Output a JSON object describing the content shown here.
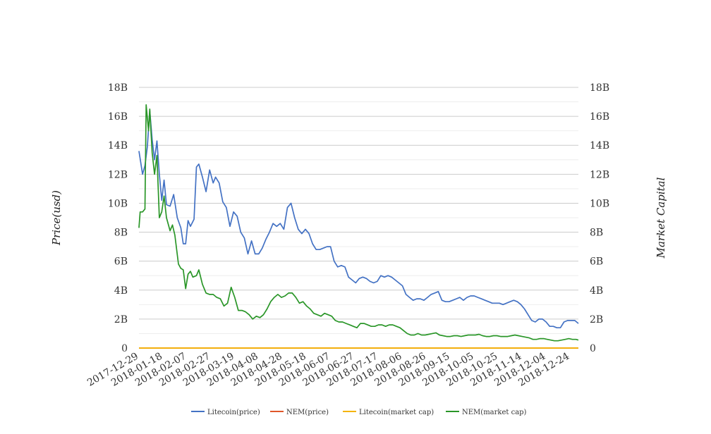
{
  "chart_data": {
    "type": "line",
    "ylabel_left": "Price(usd)",
    "ylabel_right": "Market Capital",
    "ylim": [
      0,
      18000000000
    ],
    "y_ticks": [
      {
        "value": 0,
        "label": "0"
      },
      {
        "value": 2000000000,
        "label": "2B"
      },
      {
        "value": 4000000000,
        "label": "4B"
      },
      {
        "value": 6000000000,
        "label": "6B"
      },
      {
        "value": 8000000000,
        "label": "8B"
      },
      {
        "value": 10000000000,
        "label": "10B"
      },
      {
        "value": 12000000000,
        "label": "12B"
      },
      {
        "value": 14000000000,
        "label": "14B"
      },
      {
        "value": 16000000000,
        "label": "16B"
      },
      {
        "value": 18000000000,
        "label": "18B"
      }
    ],
    "x_range": [
      "2017-12-29",
      "2018-12-31"
    ],
    "x_tick_labels": [
      "2017-12-29",
      "2018-01-18",
      "2018-02-07",
      "2018-02-27",
      "2018-03-19",
      "2018-04-08",
      "2018-04-28",
      "2018-05-18",
      "2018-06-07",
      "2018-06-27",
      "2018-07-17",
      "2018-08-06",
      "2018-08-26",
      "2018-09-15",
      "2018-10-05",
      "2018-10-25",
      "2018-11-14",
      "2018-12-04",
      "2018-12-24"
    ],
    "grid": true,
    "legend_position": "bottom",
    "series": [
      {
        "name": "Litecoin(price)",
        "color": "#4472c4",
        "axis": "left",
        "points": [
          [
            "2017-12-29",
            13.6
          ],
          [
            "2018-01-01",
            12.0
          ],
          [
            "2018-01-03",
            12.6
          ],
          [
            "2018-01-05",
            13.9
          ],
          [
            "2018-01-07",
            16.4
          ],
          [
            "2018-01-09",
            14.4
          ],
          [
            "2018-01-11",
            13.0
          ],
          [
            "2018-01-13",
            14.3
          ],
          [
            "2018-01-15",
            12.0
          ],
          [
            "2018-01-17",
            10.2
          ],
          [
            "2018-01-19",
            11.6
          ],
          [
            "2018-01-21",
            9.9
          ],
          [
            "2018-01-24",
            9.8
          ],
          [
            "2018-01-27",
            10.6
          ],
          [
            "2018-01-30",
            9.0
          ],
          [
            "2018-02-02",
            8.3
          ],
          [
            "2018-02-04",
            7.2
          ],
          [
            "2018-02-06",
            7.2
          ],
          [
            "2018-02-08",
            8.8
          ],
          [
            "2018-02-10",
            8.4
          ],
          [
            "2018-02-13",
            8.9
          ],
          [
            "2018-02-15",
            12.5
          ],
          [
            "2018-02-17",
            12.7
          ],
          [
            "2018-02-20",
            11.8
          ],
          [
            "2018-02-23",
            10.8
          ],
          [
            "2018-02-26",
            12.3
          ],
          [
            "2018-03-01",
            11.4
          ],
          [
            "2018-03-03",
            11.8
          ],
          [
            "2018-03-06",
            11.4
          ],
          [
            "2018-03-09",
            10.1
          ],
          [
            "2018-03-12",
            9.7
          ],
          [
            "2018-03-15",
            8.4
          ],
          [
            "2018-03-18",
            9.4
          ],
          [
            "2018-03-21",
            9.1
          ],
          [
            "2018-03-24",
            8.0
          ],
          [
            "2018-03-27",
            7.6
          ],
          [
            "2018-03-30",
            6.5
          ],
          [
            "2018-04-02",
            7.4
          ],
          [
            "2018-04-05",
            6.5
          ],
          [
            "2018-04-08",
            6.5
          ],
          [
            "2018-04-11",
            6.9
          ],
          [
            "2018-04-14",
            7.5
          ],
          [
            "2018-04-17",
            8.0
          ],
          [
            "2018-04-20",
            8.6
          ],
          [
            "2018-04-23",
            8.4
          ],
          [
            "2018-04-26",
            8.6
          ],
          [
            "2018-04-29",
            8.2
          ],
          [
            "2018-05-02",
            9.7
          ],
          [
            "2018-05-05",
            10.0
          ],
          [
            "2018-05-08",
            9.0
          ],
          [
            "2018-05-11",
            8.2
          ],
          [
            "2018-05-14",
            7.9
          ],
          [
            "2018-05-17",
            8.2
          ],
          [
            "2018-05-20",
            7.9
          ],
          [
            "2018-05-23",
            7.2
          ],
          [
            "2018-05-26",
            6.8
          ],
          [
            "2018-05-29",
            6.8
          ],
          [
            "2018-06-01",
            6.9
          ],
          [
            "2018-06-04",
            7.0
          ],
          [
            "2018-06-07",
            7.0
          ],
          [
            "2018-06-10",
            6.0
          ],
          [
            "2018-06-13",
            5.6
          ],
          [
            "2018-06-16",
            5.7
          ],
          [
            "2018-06-19",
            5.6
          ],
          [
            "2018-06-22",
            4.9
          ],
          [
            "2018-06-25",
            4.7
          ],
          [
            "2018-06-28",
            4.5
          ],
          [
            "2018-07-01",
            4.8
          ],
          [
            "2018-07-04",
            4.9
          ],
          [
            "2018-07-07",
            4.8
          ],
          [
            "2018-07-10",
            4.6
          ],
          [
            "2018-07-13",
            4.5
          ],
          [
            "2018-07-16",
            4.6
          ],
          [
            "2018-07-19",
            5.0
          ],
          [
            "2018-07-22",
            4.9
          ],
          [
            "2018-07-25",
            5.0
          ],
          [
            "2018-07-28",
            4.9
          ],
          [
            "2018-07-31",
            4.7
          ],
          [
            "2018-08-03",
            4.5
          ],
          [
            "2018-08-06",
            4.3
          ],
          [
            "2018-08-09",
            3.7
          ],
          [
            "2018-08-12",
            3.5
          ],
          [
            "2018-08-15",
            3.3
          ],
          [
            "2018-08-18",
            3.4
          ],
          [
            "2018-08-21",
            3.4
          ],
          [
            "2018-08-24",
            3.3
          ],
          [
            "2018-08-27",
            3.5
          ],
          [
            "2018-08-30",
            3.7
          ],
          [
            "2018-09-02",
            3.8
          ],
          [
            "2018-09-05",
            3.9
          ],
          [
            "2018-09-08",
            3.3
          ],
          [
            "2018-09-11",
            3.2
          ],
          [
            "2018-09-14",
            3.2
          ],
          [
            "2018-09-17",
            3.3
          ],
          [
            "2018-09-20",
            3.4
          ],
          [
            "2018-09-23",
            3.5
          ],
          [
            "2018-09-26",
            3.3
          ],
          [
            "2018-09-29",
            3.5
          ],
          [
            "2018-10-02",
            3.6
          ],
          [
            "2018-10-05",
            3.6
          ],
          [
            "2018-10-08",
            3.5
          ],
          [
            "2018-10-11",
            3.4
          ],
          [
            "2018-10-14",
            3.3
          ],
          [
            "2018-10-17",
            3.2
          ],
          [
            "2018-10-20",
            3.1
          ],
          [
            "2018-10-23",
            3.1
          ],
          [
            "2018-10-26",
            3.1
          ],
          [
            "2018-10-29",
            3.0
          ],
          [
            "2018-11-01",
            3.1
          ],
          [
            "2018-11-04",
            3.2
          ],
          [
            "2018-11-07",
            3.3
          ],
          [
            "2018-11-10",
            3.2
          ],
          [
            "2018-11-13",
            3.0
          ],
          [
            "2018-11-16",
            2.7
          ],
          [
            "2018-11-19",
            2.3
          ],
          [
            "2018-11-22",
            1.9
          ],
          [
            "2018-11-25",
            1.8
          ],
          [
            "2018-11-28",
            2.0
          ],
          [
            "2018-12-01",
            2.0
          ],
          [
            "2018-12-04",
            1.8
          ],
          [
            "2018-12-07",
            1.5
          ],
          [
            "2018-12-10",
            1.5
          ],
          [
            "2018-12-13",
            1.4
          ],
          [
            "2018-12-16",
            1.4
          ],
          [
            "2018-12-19",
            1.8
          ],
          [
            "2018-12-22",
            1.9
          ],
          [
            "2018-12-25",
            1.9
          ],
          [
            "2018-12-28",
            1.9
          ],
          [
            "2018-12-31",
            1.7
          ]
        ]
      },
      {
        "name": "NEM(price)",
        "color": "#e0572a",
        "axis": "left",
        "points": [
          [
            "2017-12-29",
            0
          ],
          [
            "2018-12-31",
            0
          ]
        ]
      },
      {
        "name": "Litecoin(market cap)",
        "color": "#f5b400",
        "axis": "right",
        "points": [
          [
            "2017-12-29",
            0
          ],
          [
            "2018-12-31",
            0
          ]
        ]
      },
      {
        "name": "NEM(market cap)",
        "color": "#2a9628",
        "axis": "right",
        "points": [
          [
            "2017-12-29",
            8.3
          ],
          [
            "2017-12-30",
            9.4
          ],
          [
            "2018-01-01",
            9.4
          ],
          [
            "2018-01-03",
            9.6
          ],
          [
            "2018-01-04",
            16.8
          ],
          [
            "2018-01-06",
            15.0
          ],
          [
            "2018-01-07",
            16.5
          ],
          [
            "2018-01-09",
            13.5
          ],
          [
            "2018-01-11",
            12.0
          ],
          [
            "2018-01-13",
            13.3
          ],
          [
            "2018-01-15",
            9.0
          ],
          [
            "2018-01-17",
            9.4
          ],
          [
            "2018-01-19",
            10.5
          ],
          [
            "2018-01-21",
            9.0
          ],
          [
            "2018-01-24",
            8.1
          ],
          [
            "2018-01-26",
            8.5
          ],
          [
            "2018-01-28",
            7.8
          ],
          [
            "2018-01-31",
            5.8
          ],
          [
            "2018-02-02",
            5.5
          ],
          [
            "2018-02-04",
            5.4
          ],
          [
            "2018-02-06",
            4.1
          ],
          [
            "2018-02-08",
            5.1
          ],
          [
            "2018-02-10",
            5.3
          ],
          [
            "2018-02-12",
            4.9
          ],
          [
            "2018-02-15",
            5.0
          ],
          [
            "2018-02-17",
            5.4
          ],
          [
            "2018-02-20",
            4.4
          ],
          [
            "2018-02-23",
            3.8
          ],
          [
            "2018-02-26",
            3.7
          ],
          [
            "2018-03-01",
            3.7
          ],
          [
            "2018-03-04",
            3.5
          ],
          [
            "2018-03-07",
            3.4
          ],
          [
            "2018-03-10",
            2.9
          ],
          [
            "2018-03-13",
            3.1
          ],
          [
            "2018-03-16",
            4.2
          ],
          [
            "2018-03-19",
            3.5
          ],
          [
            "2018-03-22",
            2.6
          ],
          [
            "2018-03-25",
            2.6
          ],
          [
            "2018-03-28",
            2.5
          ],
          [
            "2018-03-31",
            2.3
          ],
          [
            "2018-04-03",
            2.0
          ],
          [
            "2018-04-06",
            2.2
          ],
          [
            "2018-04-09",
            2.1
          ],
          [
            "2018-04-12",
            2.3
          ],
          [
            "2018-04-15",
            2.7
          ],
          [
            "2018-04-18",
            3.2
          ],
          [
            "2018-04-21",
            3.5
          ],
          [
            "2018-04-24",
            3.7
          ],
          [
            "2018-04-27",
            3.5
          ],
          [
            "2018-04-30",
            3.6
          ],
          [
            "2018-05-03",
            3.8
          ],
          [
            "2018-05-06",
            3.8
          ],
          [
            "2018-05-09",
            3.5
          ],
          [
            "2018-05-12",
            3.1
          ],
          [
            "2018-05-15",
            3.2
          ],
          [
            "2018-05-18",
            2.9
          ],
          [
            "2018-05-21",
            2.7
          ],
          [
            "2018-05-24",
            2.4
          ],
          [
            "2018-05-27",
            2.3
          ],
          [
            "2018-05-30",
            2.2
          ],
          [
            "2018-06-02",
            2.4
          ],
          [
            "2018-06-05",
            2.3
          ],
          [
            "2018-06-08",
            2.2
          ],
          [
            "2018-06-11",
            1.9
          ],
          [
            "2018-06-14",
            1.8
          ],
          [
            "2018-06-17",
            1.8
          ],
          [
            "2018-06-20",
            1.7
          ],
          [
            "2018-06-23",
            1.6
          ],
          [
            "2018-06-26",
            1.5
          ],
          [
            "2018-06-29",
            1.4
          ],
          [
            "2018-07-02",
            1.7
          ],
          [
            "2018-07-05",
            1.7
          ],
          [
            "2018-07-08",
            1.6
          ],
          [
            "2018-07-11",
            1.5
          ],
          [
            "2018-07-14",
            1.5
          ],
          [
            "2018-07-17",
            1.6
          ],
          [
            "2018-07-20",
            1.6
          ],
          [
            "2018-07-23",
            1.5
          ],
          [
            "2018-07-26",
            1.6
          ],
          [
            "2018-07-29",
            1.6
          ],
          [
            "2018-08-01",
            1.5
          ],
          [
            "2018-08-04",
            1.4
          ],
          [
            "2018-08-07",
            1.2
          ],
          [
            "2018-08-10",
            1.0
          ],
          [
            "2018-08-13",
            0.9
          ],
          [
            "2018-08-16",
            0.9
          ],
          [
            "2018-08-19",
            1.0
          ],
          [
            "2018-08-22",
            0.9
          ],
          [
            "2018-08-25",
            0.9
          ],
          [
            "2018-08-28",
            0.95
          ],
          [
            "2018-08-31",
            1.0
          ],
          [
            "2018-09-03",
            1.05
          ],
          [
            "2018-09-06",
            0.9
          ],
          [
            "2018-09-09",
            0.85
          ],
          [
            "2018-09-12",
            0.8
          ],
          [
            "2018-09-15",
            0.8
          ],
          [
            "2018-09-18",
            0.85
          ],
          [
            "2018-09-21",
            0.85
          ],
          [
            "2018-09-24",
            0.8
          ],
          [
            "2018-09-27",
            0.85
          ],
          [
            "2018-09-30",
            0.9
          ],
          [
            "2018-10-03",
            0.9
          ],
          [
            "2018-10-06",
            0.9
          ],
          [
            "2018-10-09",
            0.95
          ],
          [
            "2018-10-12",
            0.85
          ],
          [
            "2018-10-15",
            0.8
          ],
          [
            "2018-10-18",
            0.8
          ],
          [
            "2018-10-21",
            0.85
          ],
          [
            "2018-10-24",
            0.85
          ],
          [
            "2018-10-27",
            0.8
          ],
          [
            "2018-10-30",
            0.8
          ],
          [
            "2018-11-02",
            0.8
          ],
          [
            "2018-11-05",
            0.85
          ],
          [
            "2018-11-08",
            0.9
          ],
          [
            "2018-11-11",
            0.85
          ],
          [
            "2018-11-14",
            0.8
          ],
          [
            "2018-11-17",
            0.75
          ],
          [
            "2018-11-20",
            0.7
          ],
          [
            "2018-11-23",
            0.6
          ],
          [
            "2018-11-26",
            0.6
          ],
          [
            "2018-11-29",
            0.65
          ],
          [
            "2018-12-02",
            0.65
          ],
          [
            "2018-12-05",
            0.6
          ],
          [
            "2018-12-08",
            0.55
          ],
          [
            "2018-12-11",
            0.5
          ],
          [
            "2018-12-14",
            0.5
          ],
          [
            "2018-12-17",
            0.55
          ],
          [
            "2018-12-20",
            0.6
          ],
          [
            "2018-12-23",
            0.65
          ],
          [
            "2018-12-26",
            0.6
          ],
          [
            "2018-12-29",
            0.6
          ],
          [
            "2018-12-31",
            0.55
          ]
        ]
      }
    ]
  }
}
